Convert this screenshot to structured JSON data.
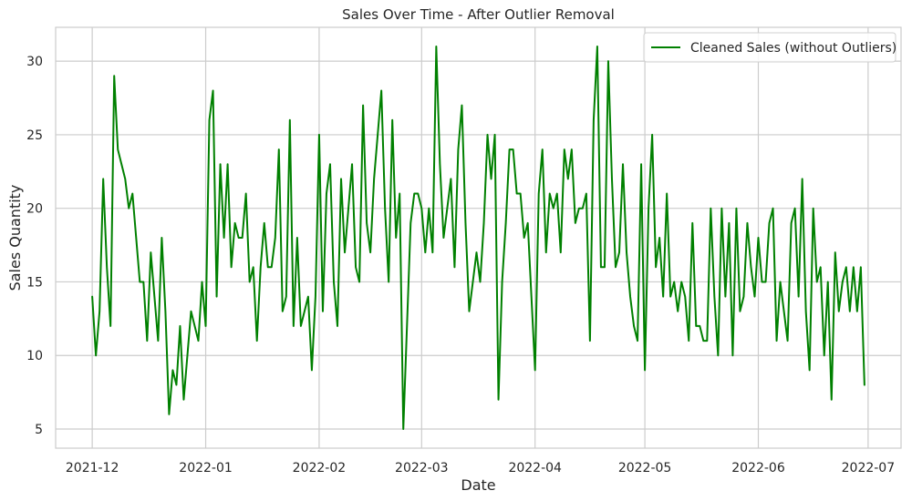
{
  "chart_data": {
    "type": "line",
    "title": "Sales Over Time - After Outlier Removal",
    "xlabel": "Date",
    "ylabel": "Sales Quantity",
    "x_start": "2021-12-01",
    "x_end": "2022-06-30",
    "xlim": [
      "2021-11-21",
      "2022-07-10"
    ],
    "ylim": [
      3.7,
      32.3
    ],
    "x_ticks": [
      {
        "date": "2021-12-01",
        "label": "2021-12"
      },
      {
        "date": "2022-01-01",
        "label": "2022-01"
      },
      {
        "date": "2022-02-01",
        "label": "2022-02"
      },
      {
        "date": "2022-03-01",
        "label": "2022-03"
      },
      {
        "date": "2022-04-01",
        "label": "2022-04"
      },
      {
        "date": "2022-05-01",
        "label": "2022-05"
      },
      {
        "date": "2022-06-01",
        "label": "2022-06"
      },
      {
        "date": "2022-07-01",
        "label": "2022-07"
      }
    ],
    "y_ticks": [
      5,
      10,
      15,
      20,
      25,
      30
    ],
    "grid": true,
    "legend_position": "upper right",
    "series": [
      {
        "name": "Cleaned Sales (without Outliers)",
        "color": "#008000",
        "values": [
          14,
          10,
          13,
          22,
          16,
          12,
          29,
          24,
          23,
          22,
          20,
          21,
          18,
          15,
          15,
          11,
          17,
          14,
          11,
          18,
          13,
          6,
          9,
          8,
          12,
          7,
          10,
          13,
          12,
          11,
          15,
          12,
          26,
          28,
          14,
          23,
          18,
          23,
          16,
          19,
          18,
          18,
          21,
          15,
          16,
          11,
          16,
          19,
          16,
          16,
          18,
          24,
          13,
          14,
          26,
          12,
          18,
          12,
          13,
          14,
          9,
          14,
          25,
          13,
          21,
          23,
          15,
          12,
          22,
          17,
          20,
          23,
          16,
          15,
          27,
          19,
          17,
          22,
          25,
          28,
          20,
          15,
          26,
          18,
          21,
          5,
          12,
          19,
          21,
          21,
          20,
          17,
          20,
          17,
          31,
          23,
          18,
          20,
          22,
          16,
          24,
          27,
          19,
          13,
          15,
          17,
          15,
          19,
          25,
          22,
          25,
          7,
          15,
          19,
          24,
          24,
          21,
          21,
          18,
          19,
          14,
          9,
          21,
          24,
          17,
          21,
          20,
          21,
          17,
          24,
          22,
          24,
          19,
          20,
          20,
          21,
          11,
          26,
          31,
          16,
          16,
          30,
          22,
          16,
          17,
          23,
          17,
          14,
          12,
          11,
          23,
          9,
          20,
          25,
          16,
          18,
          14,
          21,
          14,
          15,
          13,
          15,
          14,
          11,
          19,
          12,
          12,
          11,
          11,
          20,
          14,
          10,
          20,
          14,
          19,
          10,
          20,
          13,
          14,
          19,
          16,
          14,
          18,
          15,
          15,
          19,
          20,
          11,
          15,
          13,
          11,
          19,
          20,
          14,
          22,
          13,
          9,
          20,
          15,
          16,
          10,
          15,
          7,
          17,
          13,
          15,
          16,
          13,
          16,
          13,
          16,
          8
        ]
      }
    ]
  }
}
